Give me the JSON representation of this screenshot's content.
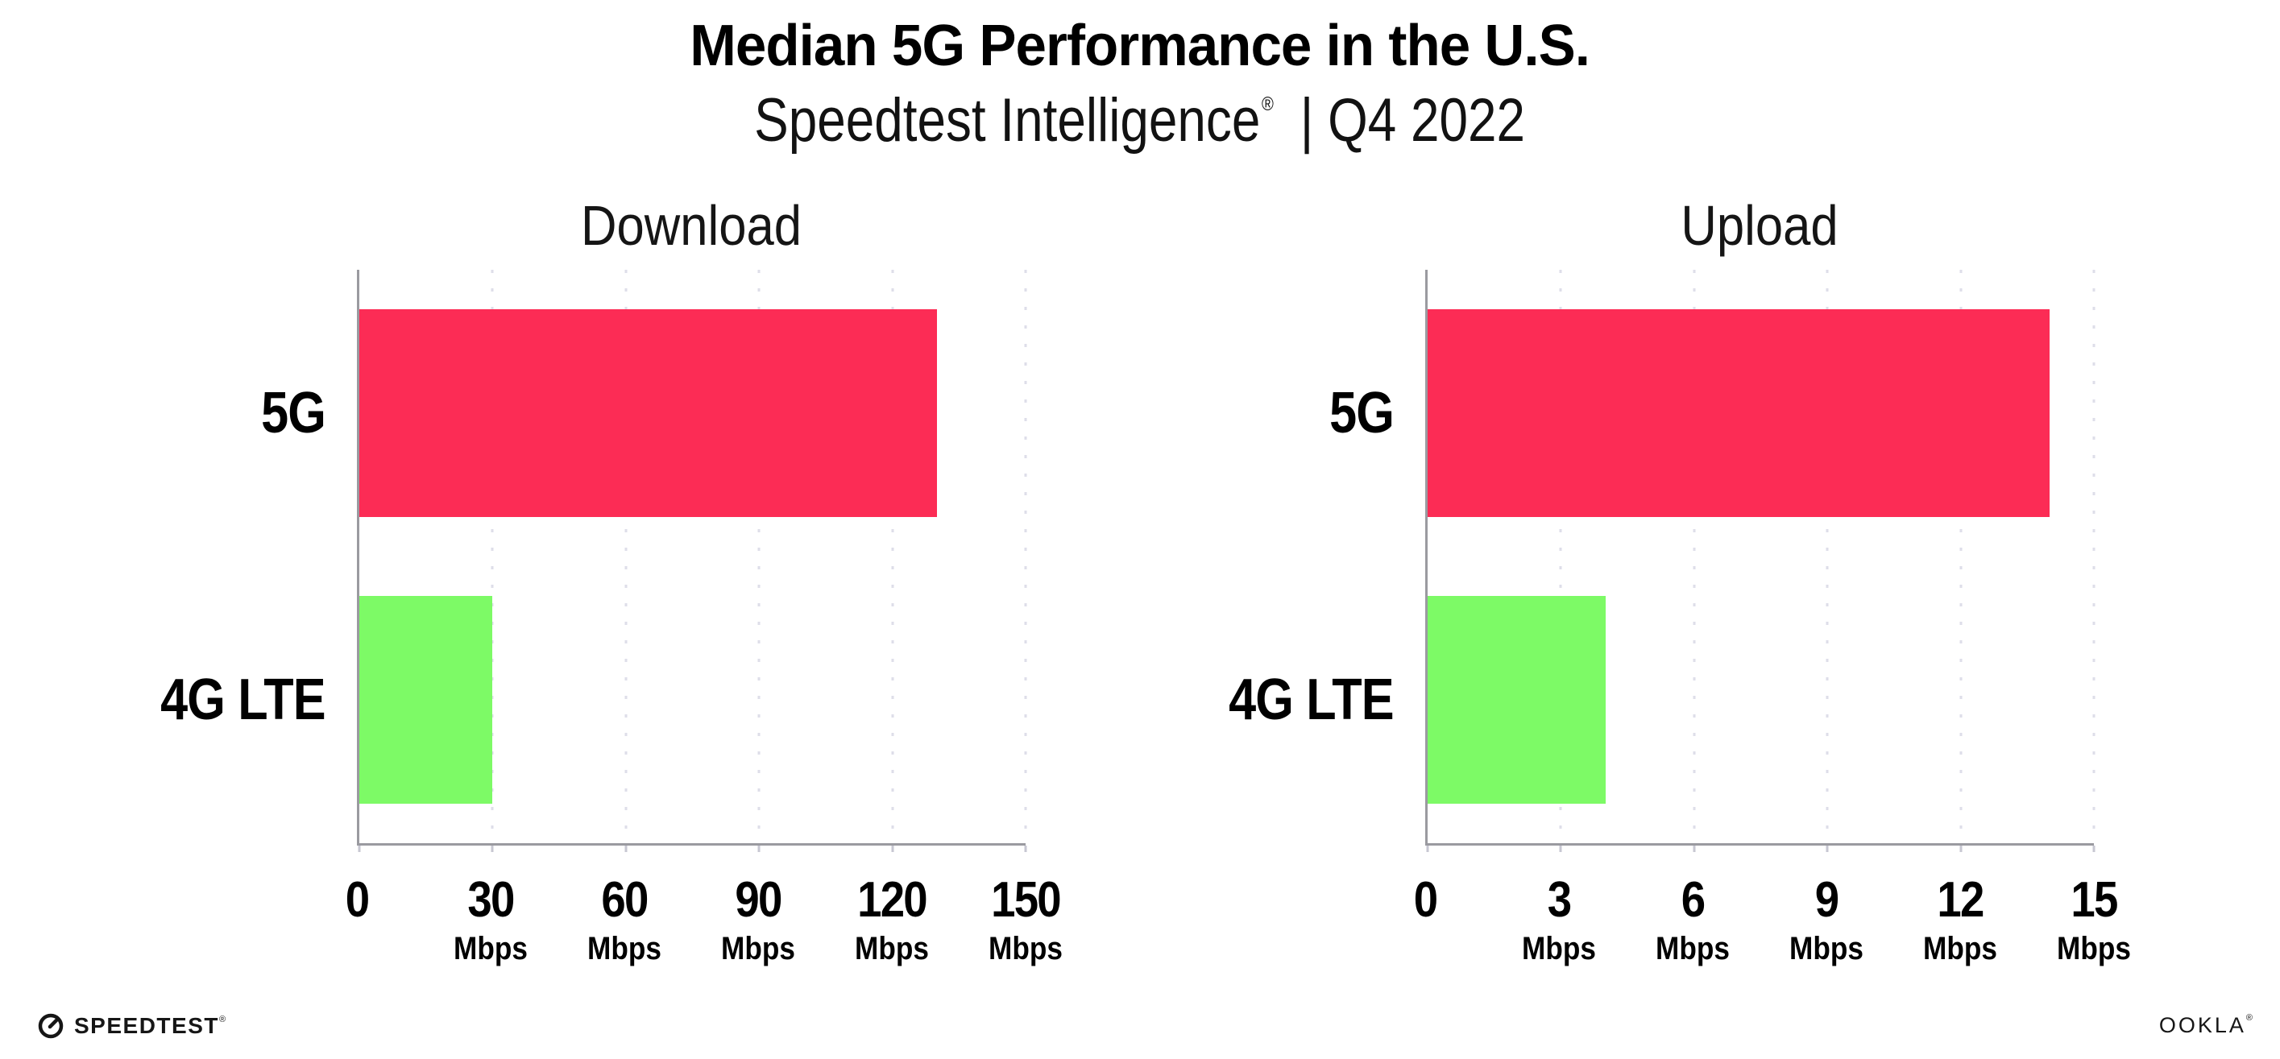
{
  "header": {
    "title": "Median 5G Performance in the U.S.",
    "subtitle_brand": "Speedtest Intelligence",
    "subtitle_reg": "®",
    "subtitle_period": "| Q4 2022"
  },
  "colors": {
    "bar_5g": "#FC2C55",
    "bar_4g_lte": "#7DFA66",
    "axis": "#9a9aa0",
    "gridline": "#dedee9",
    "text": "#000000"
  },
  "chart_data": [
    {
      "type": "bar",
      "orientation": "horizontal",
      "title": "Download",
      "categories": [
        "5G",
        "4G LTE"
      ],
      "values": [
        130,
        30
      ],
      "unit": "Mbps",
      "xlim": [
        0,
        150
      ],
      "xticks": [
        0,
        30,
        60,
        90,
        120,
        150
      ],
      "bar_colors": [
        "#FC2C55",
        "#7DFA66"
      ],
      "grid": "dotted-vertical",
      "legend": "none"
    },
    {
      "type": "bar",
      "orientation": "horizontal",
      "title": "Upload",
      "categories": [
        "5G",
        "4G LTE"
      ],
      "values": [
        14,
        4
      ],
      "unit": "Mbps",
      "xlim": [
        0,
        15
      ],
      "xticks": [
        0,
        3,
        6,
        9,
        12,
        15
      ],
      "bar_colors": [
        "#FC2C55",
        "#7DFA66"
      ],
      "grid": "dotted-vertical",
      "legend": "none"
    }
  ],
  "footer": {
    "speedtest_label": "SPEEDTEST",
    "speedtest_reg": "®",
    "ookla_label": "OOKLA",
    "ookla_reg": "®"
  }
}
